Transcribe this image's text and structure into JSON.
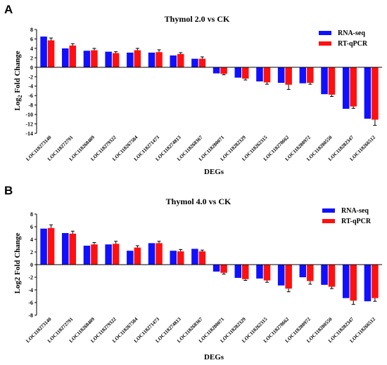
{
  "colors": {
    "rna": "#1010ff",
    "qpcr": "#ff1010",
    "axis": "#000000",
    "error": "#000000"
  },
  "chart_data": [
    {
      "panel": "A",
      "type": "bar",
      "title": "Thymol 2.0 vs CK",
      "xlabel": "DEGs",
      "ylabel": "Log2 Fold Change",
      "ylim": [
        -14,
        8
      ],
      "yticks": [
        8,
        6,
        4,
        2,
        0,
        -2,
        -4,
        -6,
        -8,
        -10,
        -12,
        -14
      ],
      "grid": false,
      "legend_position": "top-right",
      "categories": [
        "LOC118273140",
        "LOC118272791",
        "LOC118268409",
        "LOC118279322",
        "LOC118267584",
        "LOC118271473",
        "LOC118274813",
        "LOC118268367",
        "LOC118280071",
        "LOC118282329",
        "LOC118262315",
        "LOC118278662",
        "LOC118280972",
        "LOC118280550",
        "LOC118282347",
        "LOC118266512"
      ],
      "series": [
        {
          "name": "RNA-seq",
          "values": [
            6.5,
            4.0,
            3.5,
            3.3,
            3.1,
            3.1,
            2.5,
            1.8,
            -1.3,
            -2.2,
            -3.0,
            -3.3,
            -3.4,
            -5.7,
            -8.8,
            -10.9
          ],
          "errors": [
            0,
            0,
            0,
            0,
            0,
            0,
            0,
            0,
            0,
            0,
            0,
            0,
            0,
            0,
            0,
            0
          ]
        },
        {
          "name": "RT-qPCR",
          "values": [
            5.7,
            4.6,
            3.6,
            3.0,
            3.6,
            3.2,
            2.8,
            1.8,
            -1.4,
            -2.4,
            -3.2,
            -3.7,
            -3.3,
            -5.8,
            -8.3,
            -11.1
          ],
          "errors": [
            0.5,
            0.4,
            0.4,
            0.3,
            0.4,
            0.5,
            0.3,
            0.4,
            0.2,
            0.3,
            0.4,
            1.0,
            0.3,
            0.4,
            0.4,
            1.2
          ]
        }
      ]
    },
    {
      "panel": "B",
      "type": "bar",
      "title": "Thymol 4.0 vs CK",
      "xlabel": "DEGs",
      "ylabel": "Log2 Fold Change",
      "ylim": [
        -8,
        8
      ],
      "yticks": [
        8,
        6,
        4,
        2,
        0,
        -2,
        -4,
        -6,
        -8
      ],
      "grid": false,
      "legend_position": "top-right",
      "categories": [
        "LOC118273140",
        "LOC118272791",
        "LOC118268409",
        "LOC118279322",
        "LOC118267584",
        "LOC118271473",
        "LOC118274813",
        "LOC118268367",
        "LOC118280071",
        "LOC118282329",
        "LOC118262315",
        "LOC118278662",
        "LOC118280972",
        "LOC118280550",
        "LOC118282347",
        "LOC118266512"
      ],
      "series": [
        {
          "name": "RNA-seq",
          "values": [
            5.7,
            5.0,
            3.0,
            3.2,
            2.2,
            3.4,
            2.2,
            2.5,
            -1.1,
            -2.1,
            -2.2,
            -3.3,
            -2.0,
            -3.2,
            -5.3,
            -5.8
          ],
          "errors": [
            0,
            0,
            0,
            0,
            0,
            0,
            0,
            0,
            0,
            0,
            0,
            0,
            0,
            0,
            0,
            0
          ]
        },
        {
          "name": "RT-qPCR",
          "values": [
            5.8,
            4.9,
            3.2,
            3.3,
            2.7,
            3.4,
            2.1,
            2.1,
            -1.3,
            -2.3,
            -2.5,
            -3.8,
            -2.6,
            -3.5,
            -5.7,
            -5.3
          ],
          "errors": [
            0.5,
            0.4,
            0.3,
            0.4,
            0.3,
            0.3,
            0.3,
            0.2,
            0.2,
            0.2,
            0.3,
            0.5,
            0.5,
            0.3,
            0.6,
            0.5
          ]
        }
      ]
    }
  ]
}
